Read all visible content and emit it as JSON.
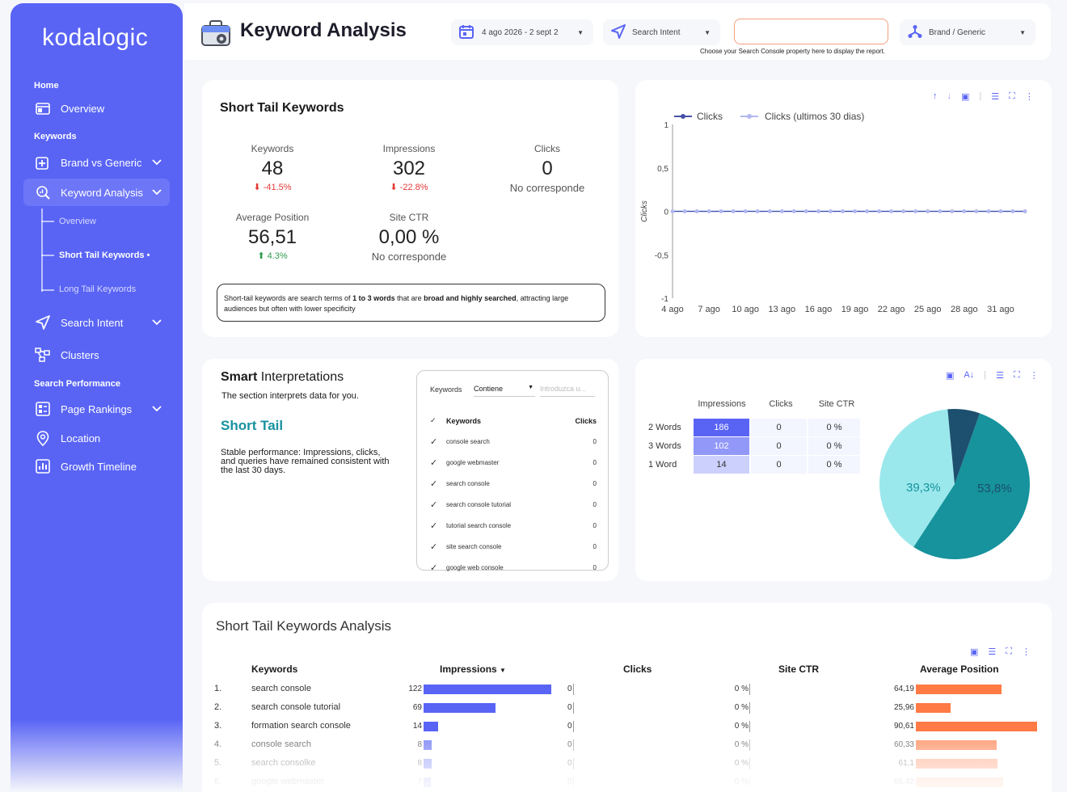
{
  "brand": "kodalogic",
  "sidebar": {
    "home": "Home",
    "overview": "Overview",
    "keywords": "Keywords",
    "brand_vs_generic": "Brand vs Generic",
    "keyword_analysis": "Keyword Analysis",
    "sub_overview": "Overview",
    "sub_short": "Short Tail Keywords •",
    "sub_long": "Long Tail Keywords",
    "search_intent": "Search Intent",
    "clusters": "Clusters",
    "search_performance": "Search Performance",
    "page_rankings": "Page Rankings",
    "location": "Location",
    "growth": "Growth Timeline"
  },
  "header": {
    "title": "Keyword Analysis",
    "date": "4 ago 2026 - 2 sept 2",
    "intent": "Search Intent",
    "brand": "Brand / Generic",
    "hint": "Choose your Search Console property here to display the report."
  },
  "short_tail": {
    "title": "Short Tail Keywords",
    "kpis": [
      {
        "label": "Keywords",
        "value": "48",
        "delta": "-41.5%"
      },
      {
        "label": "Impressions",
        "value": "302",
        "delta": "-22.8%"
      },
      {
        "label": "Clicks",
        "value": "0",
        "delta": "No corresponde"
      },
      {
        "label": "Average Position",
        "value": "56,51",
        "delta": "4.3%"
      },
      {
        "label": "Site CTR",
        "value": "0,00 %",
        "delta": "No corresponde"
      }
    ],
    "note_a": "Short-tail keywords are search terms of ",
    "note_b": "1 to 3 words",
    "note_c": " that are ",
    "note_d": "broad and highly searched",
    "note_e": ", attracting large audiences but often with lower specificity"
  },
  "line_chart": {
    "legend1": "Clicks",
    "legend2": "Clicks (ultimos 30 dias)",
    "ylabel": "Clicks",
    "yticks": [
      "1",
      "0,5",
      "0",
      "-0,5",
      "-1"
    ],
    "xticks": [
      "4 ago",
      "7 ago",
      "10 ago",
      "13 ago",
      "16 ago",
      "19 ago",
      "22 ago",
      "25 ago",
      "28 ago",
      "31 ago"
    ]
  },
  "smart": {
    "title_bold": "Smart",
    "title_rest": " Interpretations",
    "desc": "The section interprets data for you.",
    "subtitle": "Short Tail",
    "body": "Stable performance: Impressions, clicks, and queries have remained consistent with the last 30 days.",
    "filter_label": "Keywords",
    "filter_op": "Contiene",
    "filter_ph": "Introduzca u...",
    "col_kw": "Keywords",
    "col_clicks": "Clicks",
    "rows": [
      {
        "k": "console search",
        "c": "0"
      },
      {
        "k": "google webmaster",
        "c": "0"
      },
      {
        "k": "search console",
        "c": "0"
      },
      {
        "k": "search console tutorial",
        "c": "0"
      },
      {
        "k": "tutorial search console",
        "c": "0"
      },
      {
        "k": "site search console",
        "c": "0"
      },
      {
        "k": "google web console",
        "c": "0"
      }
    ]
  },
  "words": {
    "headers": [
      "Impressions",
      "Clicks",
      "Site CTR"
    ],
    "rows": [
      {
        "label": "2 Words",
        "imp": "186",
        "clicks": "0",
        "ctr": "0 %"
      },
      {
        "label": "3 Words",
        "imp": "102",
        "clicks": "0",
        "ctr": "0 %"
      },
      {
        "label": "1 Word",
        "imp": "14",
        "clicks": "0",
        "ctr": "0 %"
      }
    ],
    "pie_left": "39,3%",
    "pie_right": "53,8%"
  },
  "analysis": {
    "title": "Short Tail Keywords Analysis",
    "headers": [
      "Keywords",
      "Impressions",
      "Clicks",
      "Site CTR",
      "Average Position"
    ],
    "rows": [
      {
        "n": "1.",
        "k": "search console",
        "imp": "122",
        "c": "0",
        "ctr": "0 %",
        "pos": "64,19"
      },
      {
        "n": "2.",
        "k": "search console tutorial",
        "imp": "69",
        "c": "0",
        "ctr": "0 %",
        "pos": "25,96"
      },
      {
        "n": "3.",
        "k": "formation search console",
        "imp": "14",
        "c": "0",
        "ctr": "0 %",
        "pos": "90,61"
      },
      {
        "n": "4.",
        "k": "console search",
        "imp": "8",
        "c": "0",
        "ctr": "0 %",
        "pos": "60,33"
      },
      {
        "n": "5.",
        "k": "search consolke",
        "imp": "8",
        "c": "0",
        "ctr": "0 %",
        "pos": "61,1"
      },
      {
        "n": "6.",
        "k": "google webmaster",
        "imp": "7",
        "c": "0",
        "ctr": "0 %",
        "pos": "65,42"
      }
    ]
  },
  "chart_data": [
    {
      "type": "line",
      "title": "",
      "xlabel": "",
      "ylabel": "Clicks",
      "ylim": [
        -1,
        1
      ],
      "categories": [
        "4 ago",
        "7 ago",
        "10 ago",
        "13 ago",
        "16 ago",
        "19 ago",
        "22 ago",
        "25 ago",
        "28 ago",
        "31 ago"
      ],
      "series": [
        {
          "name": "Clicks",
          "values": [
            0,
            0,
            0,
            0,
            0,
            0,
            0,
            0,
            0,
            0
          ]
        },
        {
          "name": "Clicks (ultimos 30 dias)",
          "values": [
            0,
            0,
            0,
            0,
            0,
            0,
            0,
            0,
            0,
            0
          ]
        }
      ]
    },
    {
      "type": "pie",
      "labels": [
        "2 Words",
        "3 Words",
        "1 Word"
      ],
      "values": [
        53.8,
        39.3,
        6.9
      ]
    }
  ]
}
